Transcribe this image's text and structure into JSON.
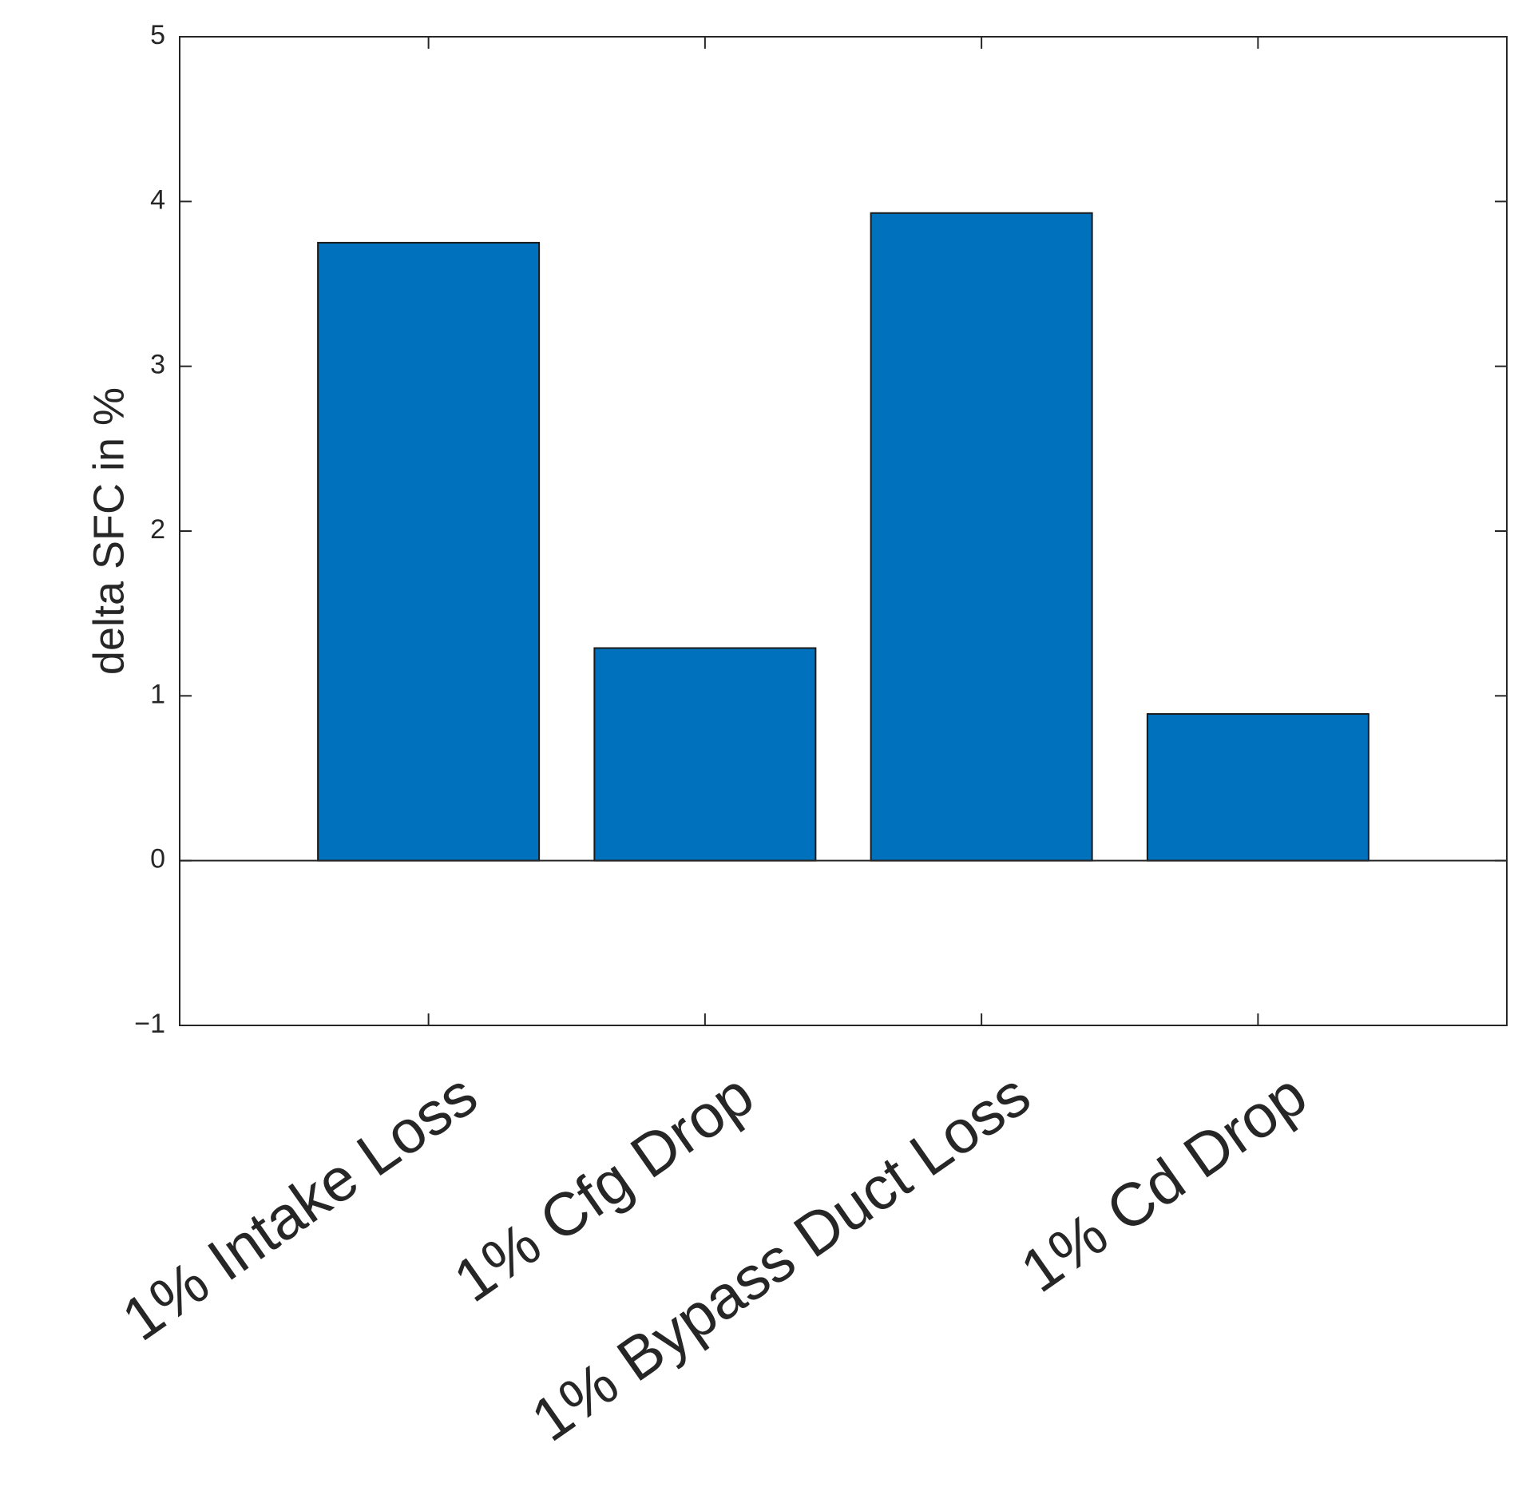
{
  "chart_data": {
    "type": "bar",
    "y_label": "delta SFC in %",
    "categories": [
      "1% Intake Loss",
      "1% Cfg Drop",
      "1% Bypass Duct Loss",
      "1% Cd Drop"
    ],
    "values": [
      3.75,
      1.29,
      3.93,
      0.89
    ],
    "color": "#0072bd",
    "ylim": [
      -1,
      5
    ],
    "yticks": [
      {
        "value": -1,
        "label": "−1"
      },
      0,
      1,
      2,
      3,
      4,
      5
    ],
    "grid": false
  }
}
